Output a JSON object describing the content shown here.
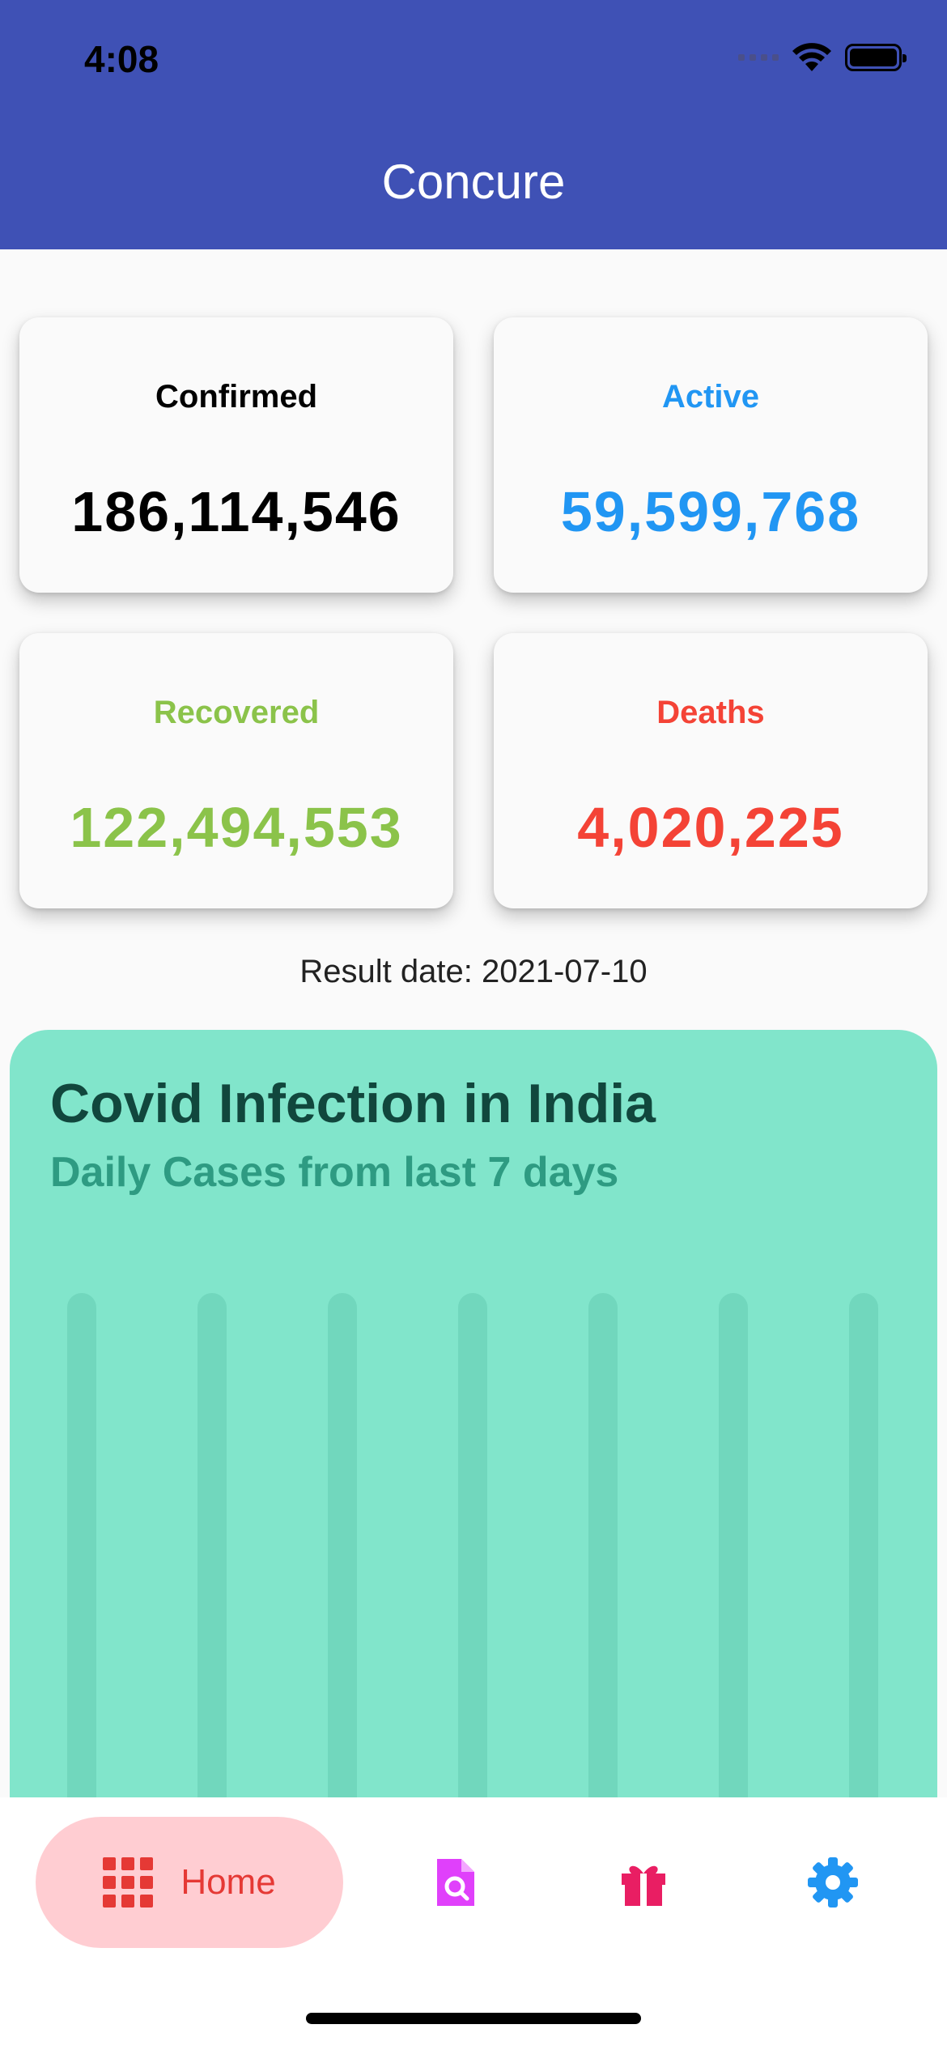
{
  "status_bar": {
    "time": "4:08"
  },
  "app_bar": {
    "title": "Concure"
  },
  "stats": {
    "confirmed": {
      "label": "Confirmed",
      "value": "186,114,546",
      "color": "#000000"
    },
    "active": {
      "label": "Active",
      "value": "59,599,768",
      "color": "#2196f3"
    },
    "recovered": {
      "label": "Recovered",
      "value": "122,494,553",
      "color": "#8bc34a"
    },
    "deaths": {
      "label": "Deaths",
      "value": "4,020,225",
      "color": "#f44336"
    }
  },
  "result_date": "Result date: 2021-07-10",
  "chart": {
    "title": "Covid Infection in India",
    "subtitle": "Daily Cases from last 7 days"
  },
  "chart_data": {
    "type": "bar",
    "categories": [],
    "values": [],
    "bar_count": 7,
    "background": "#81e5cb",
    "track_color": "#71d7bd"
  },
  "bottom_nav": {
    "items": [
      {
        "label": "Home",
        "icon": "grid-icon",
        "active": true,
        "color": "#e53935"
      },
      {
        "label": "",
        "icon": "document-search-icon",
        "active": false,
        "color": "#e040fb"
      },
      {
        "label": "",
        "icon": "gift-icon",
        "active": false,
        "color": "#e91e63"
      },
      {
        "label": "",
        "icon": "gear-icon",
        "active": false,
        "color": "#2196f3"
      }
    ]
  }
}
